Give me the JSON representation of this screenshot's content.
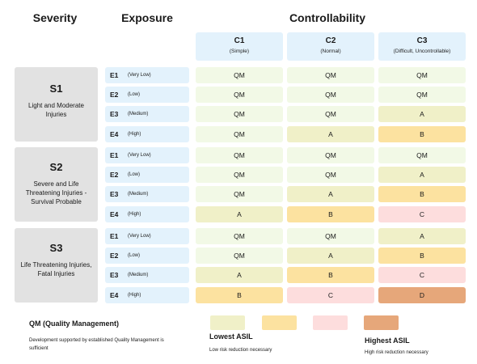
{
  "headers": {
    "severity": "Severity",
    "exposure": "Exposure",
    "controllability": "Controllability"
  },
  "controllability": [
    {
      "id": "C1",
      "desc": "(Simple)"
    },
    {
      "id": "C2",
      "desc": "(Normal)"
    },
    {
      "id": "C3",
      "desc": "(Difficult, Uncontrollable)"
    }
  ],
  "severity": [
    {
      "id": "S1",
      "desc": "Light and Moderate Injuries"
    },
    {
      "id": "S2",
      "desc": "Severe and Life Threatening Injuries - Survival Probable"
    },
    {
      "id": "S3",
      "desc": "Life Threatening Injuries, Fatal Injuries"
    }
  ],
  "exposure": [
    {
      "id": "E1",
      "desc": "(Very Low)"
    },
    {
      "id": "E2",
      "desc": "(Low)"
    },
    {
      "id": "E3",
      "desc": "(Medium)"
    },
    {
      "id": "E4",
      "desc": "(High)"
    }
  ],
  "matrix": [
    [
      [
        "QM",
        "QM",
        "QM"
      ],
      [
        "QM",
        "QM",
        "QM"
      ],
      [
        "QM",
        "QM",
        "A"
      ],
      [
        "QM",
        "A",
        "B"
      ]
    ],
    [
      [
        "QM",
        "QM",
        "QM"
      ],
      [
        "QM",
        "QM",
        "A"
      ],
      [
        "QM",
        "A",
        "B"
      ],
      [
        "A",
        "B",
        "C"
      ]
    ],
    [
      [
        "QM",
        "QM",
        "A"
      ],
      [
        "QM",
        "A",
        "B"
      ],
      [
        "A",
        "B",
        "C"
      ],
      [
        "B",
        "C",
        "D"
      ]
    ]
  ],
  "legend": {
    "qm_title": "QM (Quality Management)",
    "qm_desc": "Development supported by established Quality Management is sufficient",
    "lowest_title": "Lowest ASIL",
    "lowest_desc": "Low risk reduction necessary",
    "highest_title": "Highest ASIL",
    "highest_desc": "High risk reduction necessary",
    "swatches": [
      "#f0f0c8",
      "#fce2a0",
      "#fddddd",
      "#e6a77a"
    ]
  },
  "colors": {
    "QM": "#f2f9e6",
    "A": "#f0f0c8",
    "B": "#fce2a0",
    "C": "#fddddd",
    "D": "#e6a77a",
    "header_bg": "#e3f2fc",
    "severity_bg": "#e2e2e2"
  }
}
